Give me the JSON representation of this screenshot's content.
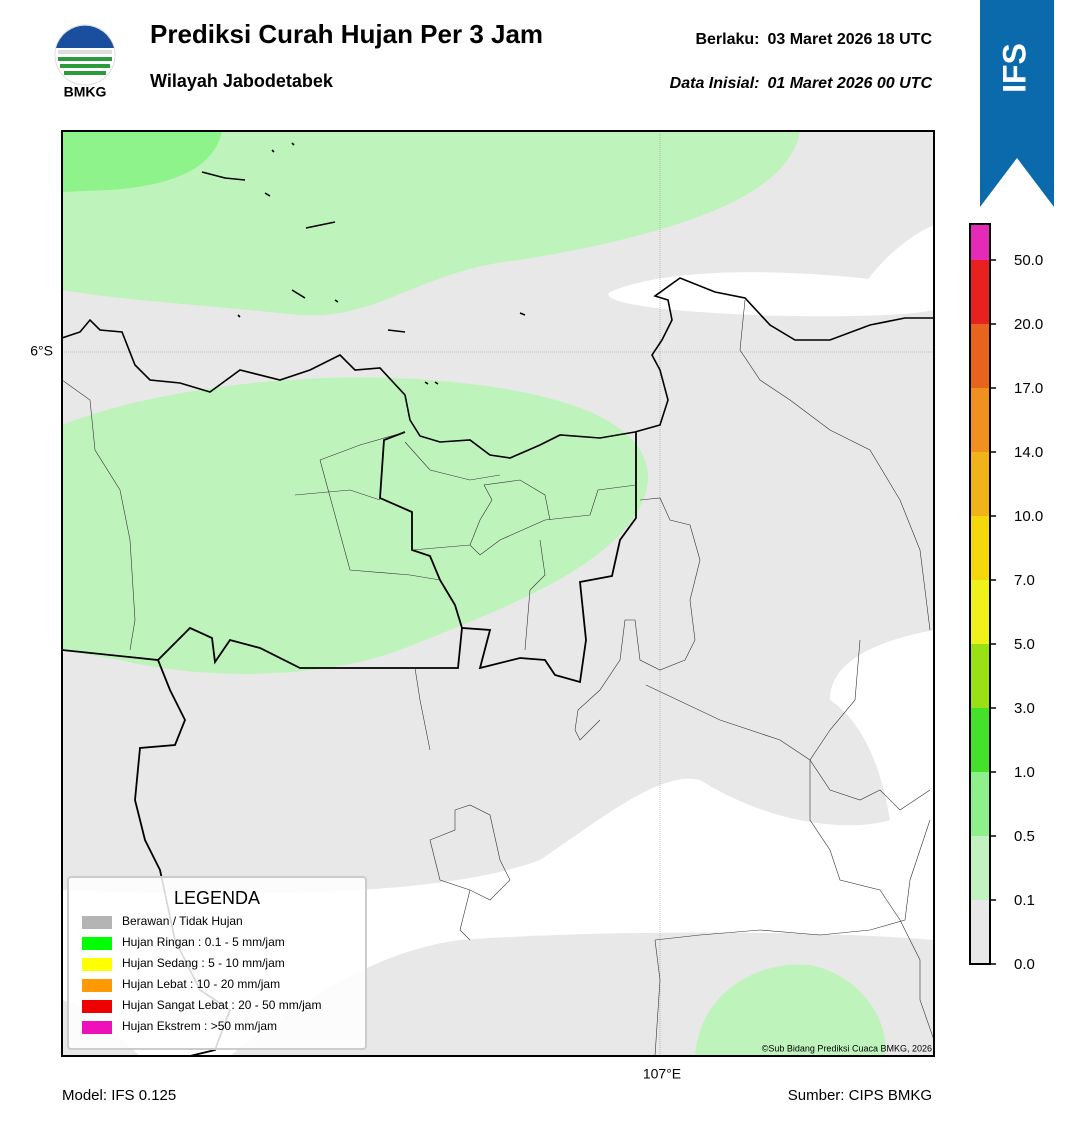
{
  "header": {
    "logo_text": "BMKG",
    "title": "Prediksi Curah Hujan Per 3 Jam",
    "subtitle": "Wilayah Jabodetabek",
    "valid_label": "Berlaku:",
    "valid_time": "03 Maret 2026 18 UTC",
    "init_label": "Data Inisial:",
    "init_time": "01 Maret 2026 00 UTC",
    "model_badge": "IFS"
  },
  "map": {
    "lat_label": "6°S",
    "lon_label": "107°E",
    "credit": "©Sub Bidang Prediksi Cuaca BMKG, 2026"
  },
  "legend": {
    "title": "LEGENDA",
    "items": [
      {
        "label": "Berawan / Tidak Hujan",
        "color": "#b4b4b4"
      },
      {
        "label": "Hujan Ringan : 0.1 - 5 mm/jam",
        "color": "#00ff00"
      },
      {
        "label": "Hujan Sedang : 5 - 10 mm/jam",
        "color": "#ffff00"
      },
      {
        "label": "Hujan Lebat : 10 - 20 mm/jam",
        "color": "#ff9900"
      },
      {
        "label": "Hujan Sangat Lebat : 20 - 50 mm/jam",
        "color": "#ee0000"
      },
      {
        "label": "Hujan Ekstrem : >50 mm/jam",
        "color": "#ee11bb"
      }
    ]
  },
  "colorbar": {
    "ticks": [
      {
        "value": 0,
        "label": "0.0"
      },
      {
        "value": 0.1,
        "label": "0.1"
      },
      {
        "value": 0.5,
        "label": "0.5"
      },
      {
        "value": 1,
        "label": "1.0"
      },
      {
        "value": 3,
        "label": "3.0"
      },
      {
        "value": 5,
        "label": "5.0"
      },
      {
        "value": 7,
        "label": "7.0"
      },
      {
        "value": 10,
        "label": "10.0"
      },
      {
        "value": 14,
        "label": "14.0"
      },
      {
        "value": 17,
        "label": "17.0"
      },
      {
        "value": 20,
        "label": "20.0"
      },
      {
        "value": 50,
        "label": "50.0"
      }
    ],
    "colors": [
      "#e8e8e8",
      "#c2f2c0",
      "#8ef08a",
      "#44e02a",
      "#99e014",
      "#eef21a",
      "#f5d80c",
      "#f0b31a",
      "#f0901e",
      "#e8641e",
      "#e82020",
      "#e62ab8"
    ]
  },
  "footer": {
    "model": "Model: IFS 0.125",
    "source": "Sumber: CIPS BMKG"
  }
}
